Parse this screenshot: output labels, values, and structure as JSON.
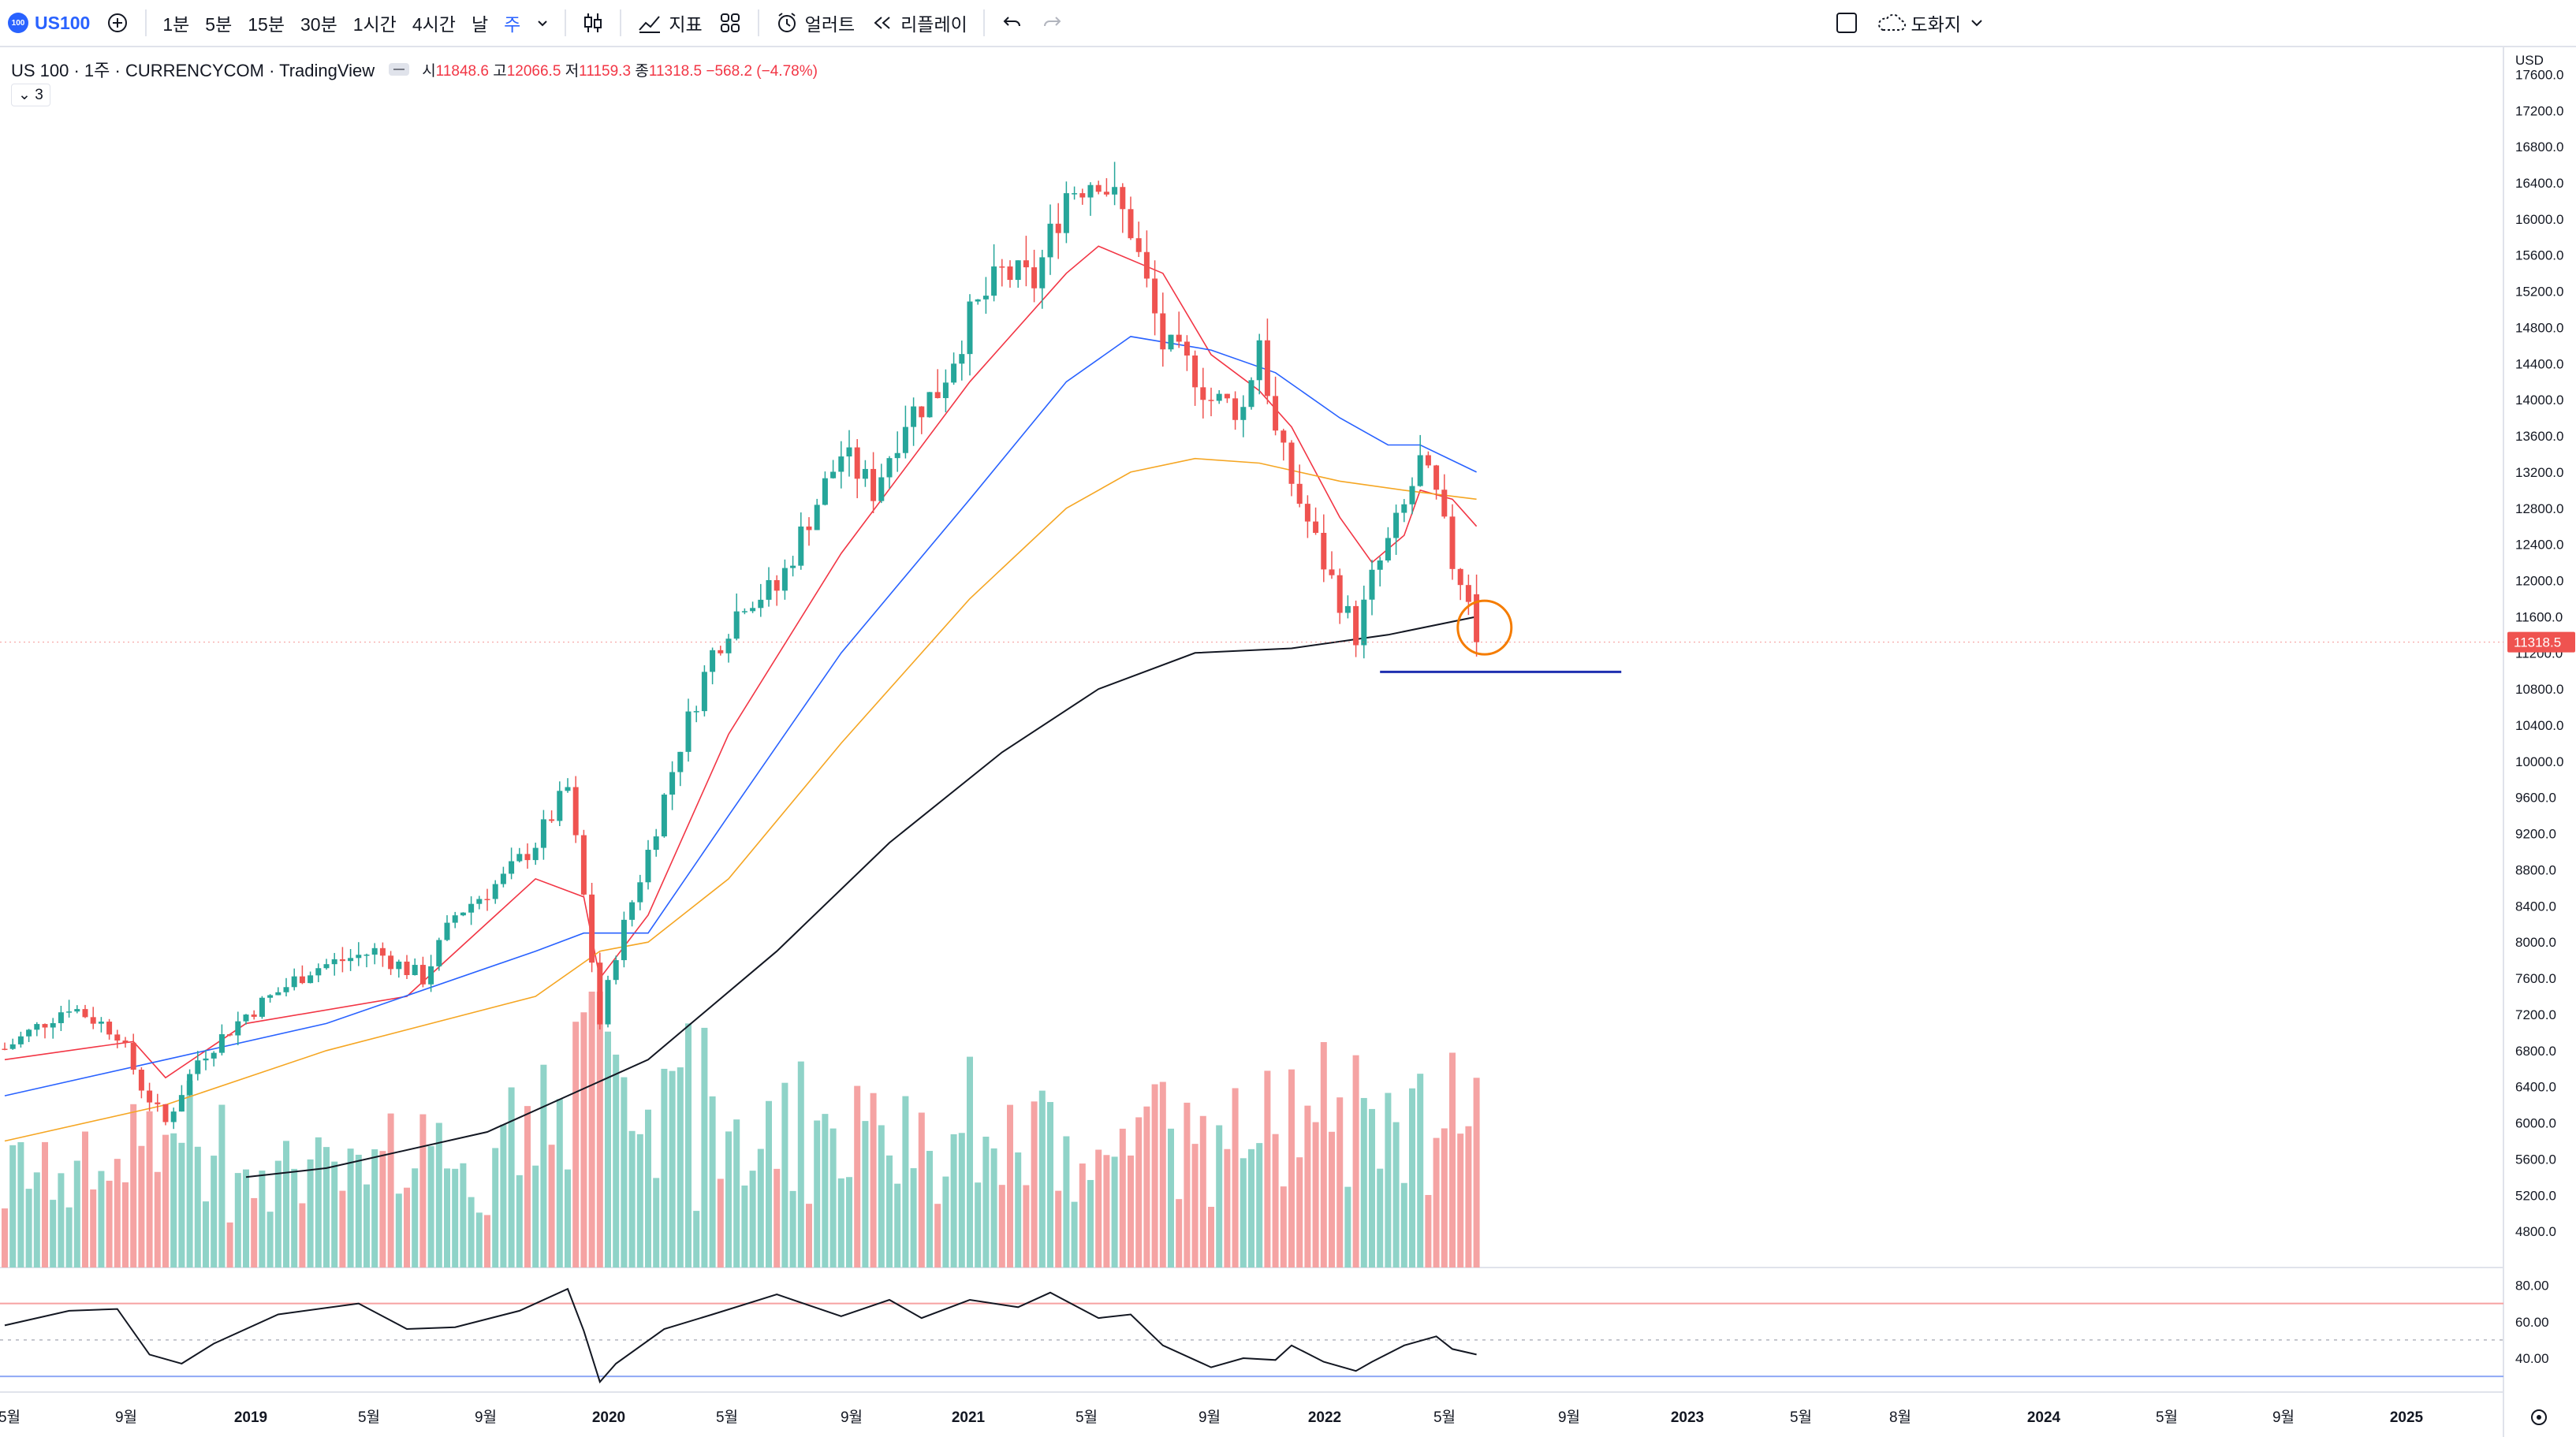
{
  "toolbar": {
    "symbol_logo": "100",
    "symbol": "US100",
    "intervals": [
      "1분",
      "5분",
      "15분",
      "30분",
      "1시간",
      "4시간",
      "날",
      "주"
    ],
    "active_interval": "주",
    "indicators_label": "지표",
    "alert_label": "얼러트",
    "replay_label": "리플레이",
    "layout_label": "도화지"
  },
  "legend": {
    "title": "US 100 · 1주 · CURRENCYCOM · TradingView",
    "open_label": "시",
    "open": "11848.6",
    "high_label": "고",
    "high": "12066.5",
    "low_label": "저",
    "low": "11159.3",
    "close_label": "종",
    "close": "11318.5",
    "change": "−568.2 (−4.78%)",
    "collapse_count": "3"
  },
  "colors": {
    "up": "#26a69a",
    "down": "#ef5350",
    "up_vol": "#8fd3c8",
    "down_vol": "#f5a3a3",
    "ma_short": "#f23645",
    "ma_mid": "#2962ff",
    "ma_long": "#f5a623",
    "ma_200": "#131722",
    "support_line": "#1e2fb0",
    "highlight_circle": "#f57c00",
    "price_label": "#ef5350"
  },
  "chart_data": {
    "type": "candlestick",
    "timeframe": "1W",
    "currency": "USD",
    "last_price": "11318.5",
    "y_axis_ticks": [
      "17600.0",
      "17200.0",
      "16800.0",
      "16400.0",
      "16000.0",
      "15600.0",
      "15200.0",
      "14800.0",
      "14400.0",
      "14000.0",
      "13600.0",
      "13200.0",
      "12800.0",
      "12400.0",
      "12000.0",
      "11600.0",
      "11200.0",
      "10800.0",
      "10400.0",
      "10000.0",
      "9600.0",
      "9200.0",
      "8800.0",
      "8400.0",
      "8000.0",
      "7600.0",
      "7200.0",
      "6800.0",
      "6400.0",
      "6000.0",
      "5600.0",
      "5200.0",
      "4800.0"
    ],
    "x_axis_ticks": [
      "5월",
      "9월",
      "2019",
      "5월",
      "9월",
      "2020",
      "5월",
      "9월",
      "2021",
      "5월",
      "9월",
      "2022",
      "5월",
      "9월",
      "2023",
      "5월",
      "8월",
      "2024",
      "5월",
      "9월",
      "2025"
    ],
    "ylim": [
      4400,
      17900
    ],
    "price_path": [
      [
        0,
        6820
      ],
      [
        8,
        7300
      ],
      [
        14,
        7000
      ],
      [
        17,
        6400
      ],
      [
        20,
        6000
      ],
      [
        24,
        6700
      ],
      [
        30,
        7200
      ],
      [
        38,
        7700
      ],
      [
        46,
        7900
      ],
      [
        52,
        7600
      ],
      [
        56,
        8300
      ],
      [
        62,
        8700
      ],
      [
        66,
        9100
      ],
      [
        70,
        9700
      ],
      [
        72,
        8500
      ],
      [
        74,
        7100
      ],
      [
        76,
        7900
      ],
      [
        80,
        9000
      ],
      [
        84,
        10200
      ],
      [
        88,
        11200
      ],
      [
        92,
        11800
      ],
      [
        96,
        11900
      ],
      [
        100,
        12700
      ],
      [
        104,
        13400
      ],
      [
        108,
        13000
      ],
      [
        112,
        13800
      ],
      [
        116,
        14100
      ],
      [
        120,
        14900
      ],
      [
        124,
        15400
      ],
      [
        128,
        15300
      ],
      [
        132,
        16300
      ],
      [
        136,
        16500
      ],
      [
        140,
        15900
      ],
      [
        144,
        14600
      ],
      [
        148,
        14300
      ],
      [
        150,
        14000
      ],
      [
        154,
        13900
      ],
      [
        156,
        14700
      ],
      [
        158,
        13600
      ],
      [
        160,
        13100
      ],
      [
        164,
        12200
      ],
      [
        168,
        11400
      ],
      [
        170,
        12000
      ],
      [
        174,
        12800
      ],
      [
        176,
        13300
      ],
      [
        178,
        12900
      ],
      [
        180,
        12200
      ],
      [
        182,
        11850
      ],
      [
        183,
        11318.5
      ]
    ],
    "moving_averages": [
      {
        "name": "MA short",
        "color": "#f23645",
        "points": [
          [
            0,
            6700
          ],
          [
            16,
            6900
          ],
          [
            20,
            6500
          ],
          [
            30,
            7100
          ],
          [
            50,
            7400
          ],
          [
            66,
            8700
          ],
          [
            72,
            8500
          ],
          [
            74,
            7600
          ],
          [
            80,
            8300
          ],
          [
            90,
            10300
          ],
          [
            104,
            12300
          ],
          [
            120,
            14200
          ],
          [
            132,
            15400
          ],
          [
            136,
            15700
          ],
          [
            144,
            15400
          ],
          [
            150,
            14500
          ],
          [
            156,
            14100
          ],
          [
            160,
            13700
          ],
          [
            166,
            12700
          ],
          [
            170,
            12200
          ],
          [
            174,
            12500
          ],
          [
            176,
            13000
          ],
          [
            180,
            12900
          ],
          [
            183,
            12600
          ]
        ]
      },
      {
        "name": "MA 20",
        "color": "#2962ff",
        "points": [
          [
            0,
            6300
          ],
          [
            20,
            6700
          ],
          [
            40,
            7100
          ],
          [
            66,
            7900
          ],
          [
            72,
            8100
          ],
          [
            80,
            8100
          ],
          [
            90,
            9400
          ],
          [
            104,
            11200
          ],
          [
            120,
            12900
          ],
          [
            132,
            14200
          ],
          [
            140,
            14700
          ],
          [
            150,
            14550
          ],
          [
            158,
            14300
          ],
          [
            166,
            13800
          ],
          [
            172,
            13500
          ],
          [
            176,
            13500
          ],
          [
            183,
            13200
          ]
        ]
      },
      {
        "name": "MA 50",
        "color": "#f5a623",
        "points": [
          [
            0,
            5800
          ],
          [
            20,
            6200
          ],
          [
            40,
            6800
          ],
          [
            66,
            7400
          ],
          [
            74,
            7900
          ],
          [
            80,
            8000
          ],
          [
            90,
            8700
          ],
          [
            104,
            10200
          ],
          [
            120,
            11800
          ],
          [
            132,
            12800
          ],
          [
            140,
            13200
          ],
          [
            148,
            13350
          ],
          [
            156,
            13300
          ],
          [
            166,
            13100
          ],
          [
            174,
            13000
          ],
          [
            183,
            12900
          ]
        ]
      },
      {
        "name": "MA 200",
        "color": "#131722",
        "points": [
          [
            30,
            5400
          ],
          [
            40,
            5500
          ],
          [
            60,
            5900
          ],
          [
            80,
            6700
          ],
          [
            96,
            7900
          ],
          [
            110,
            9100
          ],
          [
            124,
            10100
          ],
          [
            136,
            10800
          ],
          [
            148,
            11200
          ],
          [
            160,
            11250
          ],
          [
            172,
            11400
          ],
          [
            183,
            11600
          ]
        ]
      }
    ],
    "volume": {
      "scale_max_fraction": 0.29
    },
    "rsi": {
      "axis_ticks": [
        "80.00",
        "60.00",
        "40.00"
      ],
      "upper_band": 70,
      "lower_band": 30,
      "mid": 50,
      "points": [
        [
          0,
          58
        ],
        [
          8,
          66
        ],
        [
          14,
          67
        ],
        [
          18,
          42
        ],
        [
          22,
          37
        ],
        [
          26,
          48
        ],
        [
          34,
          64
        ],
        [
          44,
          70
        ],
        [
          50,
          56
        ],
        [
          56,
          57
        ],
        [
          64,
          66
        ],
        [
          70,
          78
        ],
        [
          72,
          55
        ],
        [
          74,
          27
        ],
        [
          76,
          37
        ],
        [
          82,
          56
        ],
        [
          88,
          64
        ],
        [
          96,
          75
        ],
        [
          104,
          63
        ],
        [
          110,
          72
        ],
        [
          114,
          62
        ],
        [
          120,
          72
        ],
        [
          126,
          68
        ],
        [
          130,
          76
        ],
        [
          136,
          62
        ],
        [
          140,
          64
        ],
        [
          144,
          47
        ],
        [
          150,
          35
        ],
        [
          154,
          40
        ],
        [
          158,
          39
        ],
        [
          160,
          47
        ],
        [
          164,
          38
        ],
        [
          168,
          33
        ],
        [
          170,
          38
        ],
        [
          174,
          47
        ],
        [
          178,
          52
        ],
        [
          180,
          45
        ],
        [
          183,
          42
        ]
      ]
    },
    "annotations": {
      "support_level": 10990,
      "support_from_bar": 171,
      "support_to_bar": 201,
      "circle_bar": 184,
      "circle_price": 11480
    }
  }
}
